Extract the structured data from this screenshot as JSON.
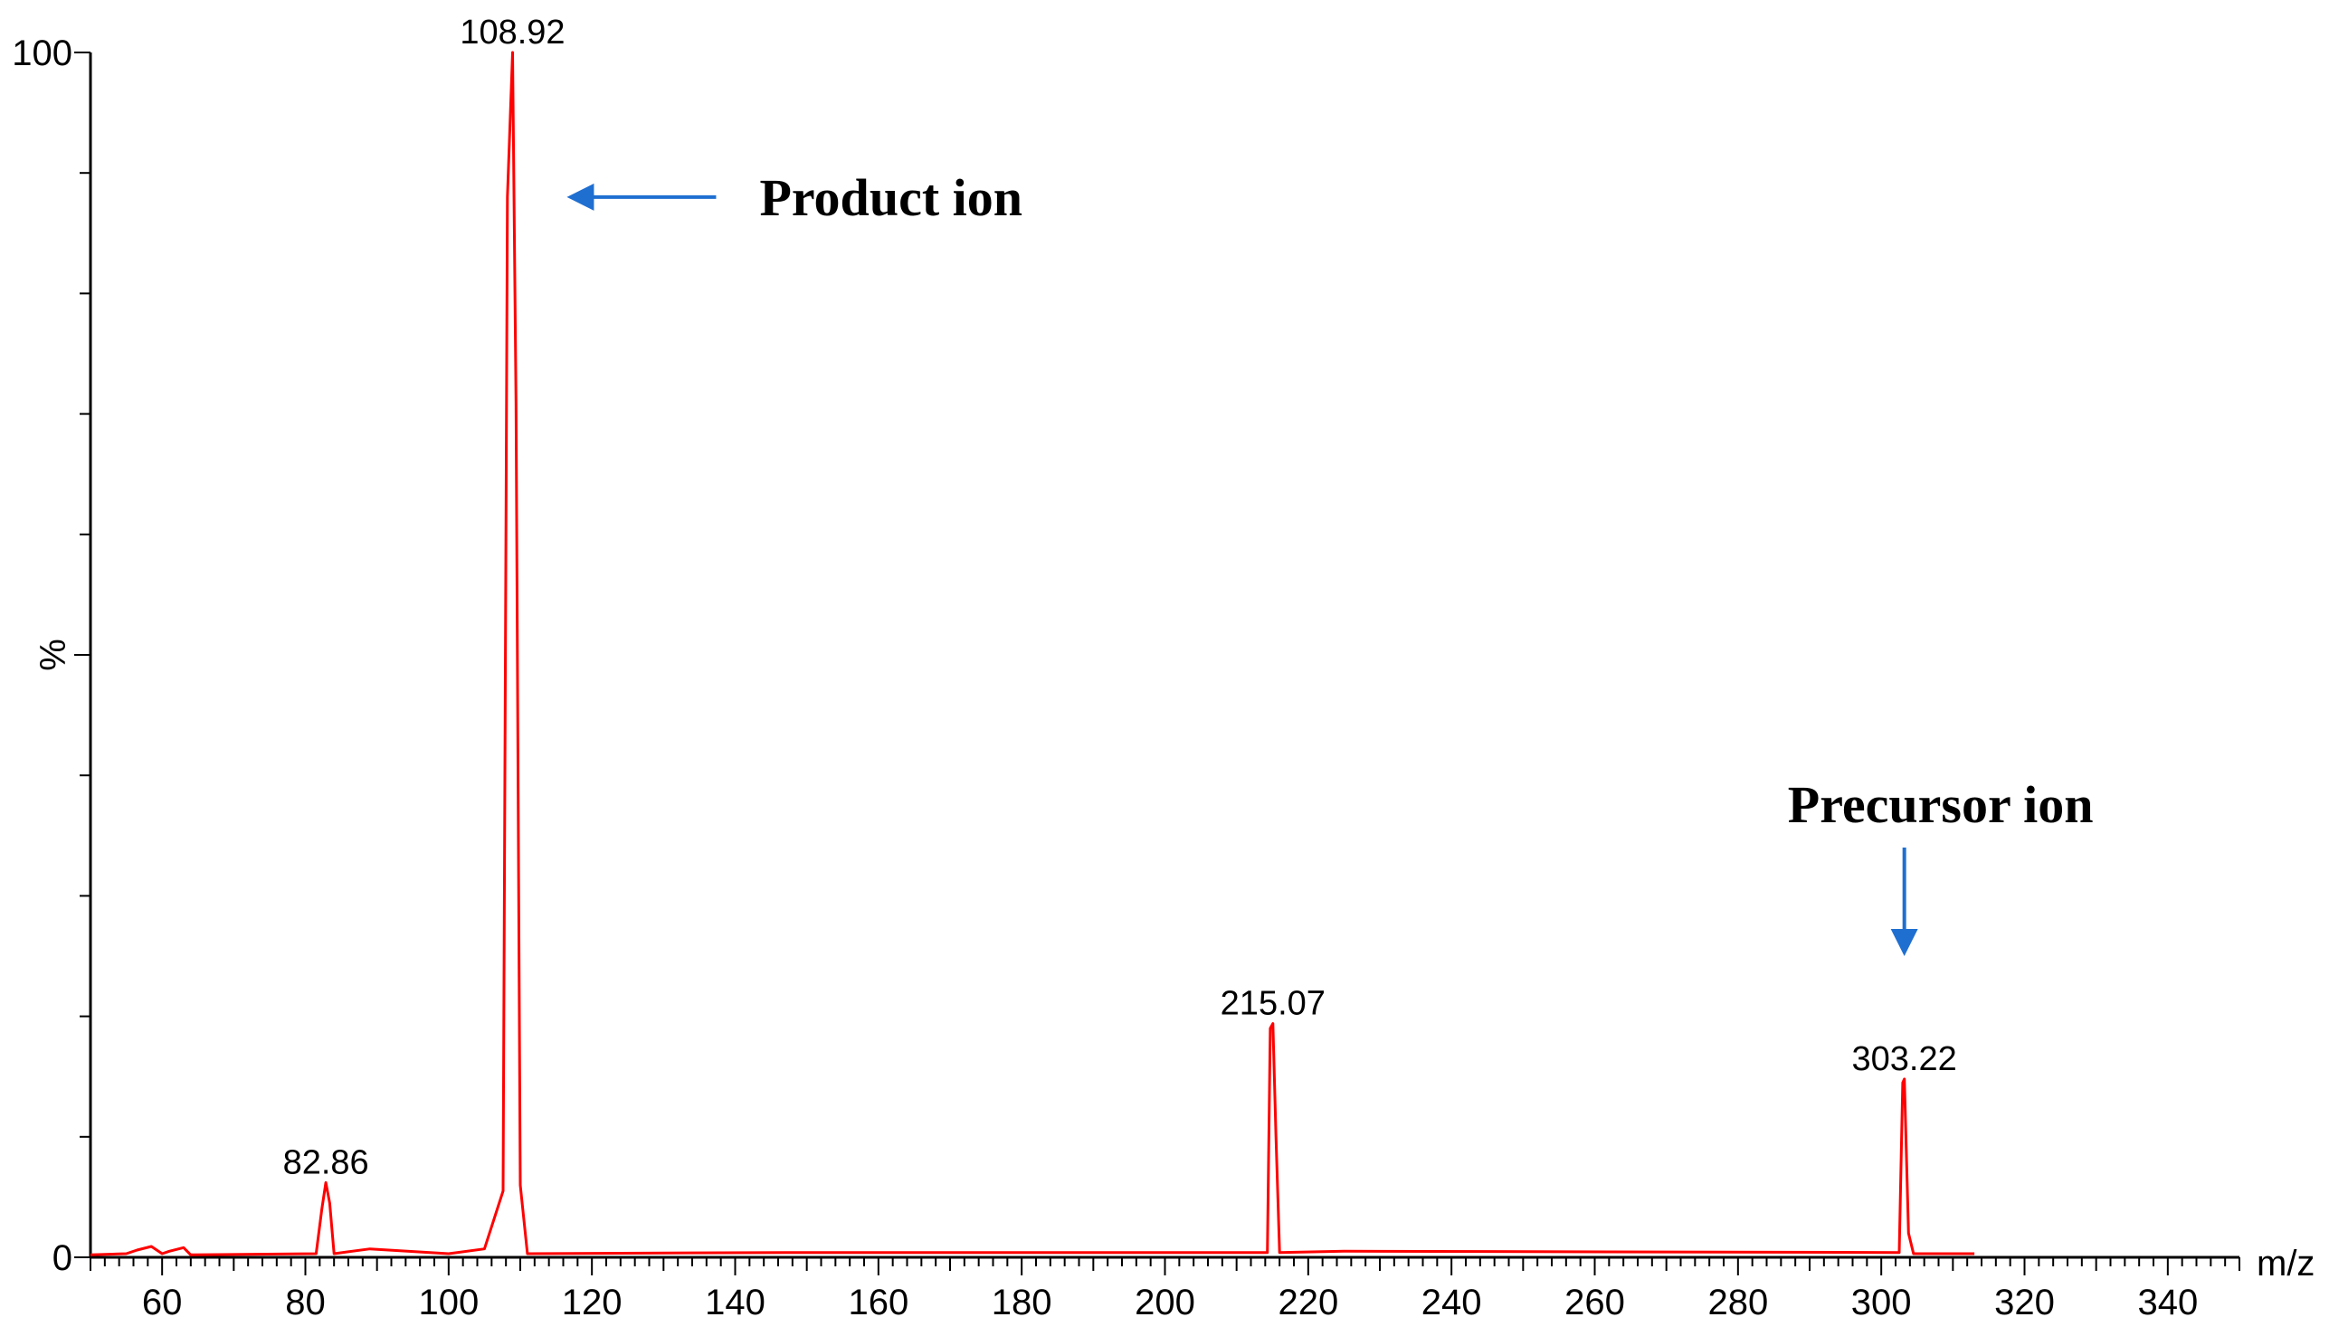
{
  "chart_data": {
    "type": "line",
    "title": "",
    "xlabel": "m/z",
    "ylabel": "%",
    "xlim": [
      50,
      350
    ],
    "ylim": [
      0,
      100
    ],
    "x_ticks": [
      60,
      80,
      100,
      120,
      140,
      160,
      180,
      200,
      220,
      240,
      260,
      280,
      300,
      320,
      340
    ],
    "y_ticks": [
      0,
      100
    ],
    "grid": false,
    "legend": "none",
    "series": [
      {
        "color": "#ff0000",
        "profile": [
          [
            50.0,
            0.2
          ],
          [
            55.0,
            0.3
          ],
          [
            56.5,
            0.6
          ],
          [
            58.5,
            0.9
          ],
          [
            60.0,
            0.3
          ],
          [
            61.0,
            0.5
          ],
          [
            63.0,
            0.8
          ],
          [
            64.0,
            0.2
          ],
          [
            81.5,
            0.3
          ],
          [
            82.3,
            4.0
          ],
          [
            82.86,
            6.2
          ],
          [
            83.4,
            4.5
          ],
          [
            84.0,
            0.3
          ],
          [
            89.0,
            0.7
          ],
          [
            100.0,
            0.3
          ],
          [
            105.0,
            0.7
          ],
          [
            107.6,
            5.5
          ],
          [
            108.2,
            88.0
          ],
          [
            108.92,
            100.0
          ],
          [
            109.4,
            71.0
          ],
          [
            110.0,
            6.0
          ],
          [
            111.0,
            0.3
          ],
          [
            147.0,
            0.4
          ],
          [
            214.3,
            0.4
          ],
          [
            214.7,
            19.0
          ],
          [
            215.07,
            19.4
          ],
          [
            215.5,
            10.0
          ],
          [
            216.0,
            0.4
          ],
          [
            225.0,
            0.5
          ],
          [
            302.5,
            0.4
          ],
          [
            303.0,
            14.5
          ],
          [
            303.22,
            14.8
          ],
          [
            303.8,
            2.0
          ],
          [
            304.5,
            0.3
          ],
          [
            313.0,
            0.3
          ]
        ]
      }
    ],
    "peaks": [
      {
        "mz": 82.86,
        "intensity": 6.2,
        "label": "82.86"
      },
      {
        "mz": 108.92,
        "intensity": 100.0,
        "label": "108.92"
      },
      {
        "mz": 215.07,
        "intensity": 19.4,
        "label": "215.07"
      },
      {
        "mz": 303.22,
        "intensity": 14.8,
        "label": "303.22"
      }
    ],
    "annotations": [
      {
        "text": "Product ion",
        "target_mz": 108.92,
        "target_intensity": 88.0,
        "arrow": "left",
        "arrow_color": "#1f6fd1"
      },
      {
        "text": "Precursor ion",
        "target_mz": 303.22,
        "target_intensity": 22.0,
        "arrow": "down",
        "arrow_color": "#1f6fd1"
      }
    ]
  }
}
